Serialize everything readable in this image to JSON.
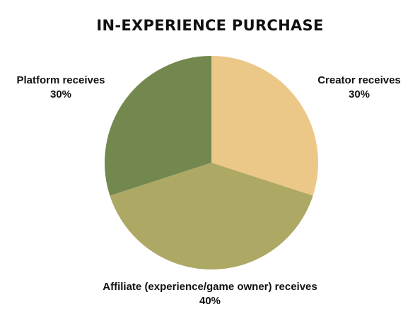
{
  "chart_data": {
    "type": "pie",
    "title": "IN-EXPERIENCE PURCHASE",
    "slices": [
      {
        "name": "Creator receives",
        "value": 30,
        "value_label": "30%",
        "color": "#ecc888"
      },
      {
        "name": "Affiliate (experience/game owner) receives",
        "value": 40,
        "value_label": "40%",
        "color": "#ada864"
      },
      {
        "name": "Platform receives",
        "value": 30,
        "value_label": "30%",
        "color": "#72884e"
      }
    ],
    "start_angle_deg": 0,
    "direction": "clockwise",
    "legend": "none"
  }
}
